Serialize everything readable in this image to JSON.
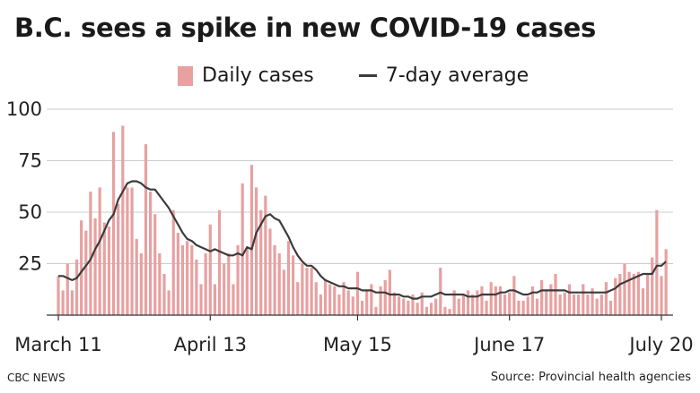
{
  "header": {
    "title": "B.C. sees a spike in new COVID-19 cases"
  },
  "footer": {
    "credit": "CBC NEWS",
    "source": "Source: Provincial health agencies"
  },
  "colors": {
    "bar": "#e8a0a0",
    "line": "#3b3b3b",
    "grid": "#cccccc"
  },
  "chart_data": {
    "type": "bar",
    "title": "B.C. sees a spike in new COVID-19 cases",
    "x_start": "March 11",
    "x_end": "July 20",
    "xticks": [
      {
        "label": "March 11",
        "day": 0
      },
      {
        "label": "April 13",
        "day": 33
      },
      {
        "label": "May 15",
        "day": 65
      },
      {
        "label": "June 17",
        "day": 98
      },
      {
        "label": "July 20",
        "day": 131
      }
    ],
    "yticks": [
      25,
      50,
      75,
      100
    ],
    "ylim": [
      0,
      100
    ],
    "grid": true,
    "legend_position": "top",
    "series": [
      {
        "name": "Daily cases",
        "type": "bar",
        "values": [
          19,
          12,
          25,
          12,
          27,
          46,
          41,
          60,
          47,
          62,
          45,
          43,
          89,
          54,
          92,
          62,
          62,
          37,
          30,
          83,
          60,
          49,
          30,
          20,
          12,
          51,
          40,
          34,
          36,
          34,
          27,
          15,
          30,
          44,
          15,
          51,
          25,
          30,
          15,
          34,
          64,
          33,
          73,
          62,
          51,
          58,
          42,
          34,
          30,
          22,
          36,
          29,
          16,
          25,
          23,
          23,
          16,
          10,
          17,
          15,
          14,
          10,
          16,
          12,
          9,
          21,
          7,
          12,
          15,
          4,
          14,
          17,
          22,
          11,
          9,
          8,
          7,
          10,
          6,
          11,
          4,
          6,
          8,
          23,
          4,
          3,
          12,
          8,
          10,
          12,
          10,
          12,
          14,
          7,
          16,
          14,
          14,
          10,
          11,
          19,
          7,
          7,
          9,
          14,
          8,
          17,
          12,
          15,
          20,
          10,
          11,
          15,
          10,
          10,
          15,
          10,
          13,
          8,
          10,
          16,
          7,
          18,
          20,
          25,
          21,
          20,
          21,
          13,
          20,
          28,
          51,
          19,
          32
        ],
        "total_points": 133
      },
      {
        "name": "7-day average",
        "type": "line",
        "values": [
          19,
          19,
          18,
          17,
          18,
          21,
          24,
          27,
          32,
          36,
          41,
          46,
          49,
          56,
          60,
          64,
          65,
          65,
          64,
          62,
          61,
          61,
          58,
          55,
          52,
          48,
          44,
          40,
          37,
          36,
          34,
          33,
          32,
          31,
          32,
          31,
          30,
          29,
          29,
          30,
          29,
          33,
          32,
          40,
          44,
          48,
          49,
          47,
          46,
          42,
          38,
          33,
          29,
          26,
          24,
          24,
          22,
          19,
          17,
          16,
          15,
          14,
          14,
          13,
          13,
          13,
          12,
          12,
          12,
          11,
          11,
          11,
          10,
          10,
          10,
          9,
          9,
          8,
          8,
          9,
          9,
          9,
          10,
          11,
          10,
          10,
          10,
          10,
          10,
          9,
          9,
          9,
          10,
          10,
          10,
          10,
          11,
          11,
          12,
          12,
          11,
          10,
          10,
          11,
          11,
          12,
          12,
          12,
          12,
          12,
          12,
          11,
          11,
          11,
          11,
          11,
          11,
          11,
          11,
          11,
          12,
          13,
          15,
          16,
          17,
          18,
          19,
          20,
          20,
          20,
          24,
          24,
          26
        ]
      }
    ]
  }
}
